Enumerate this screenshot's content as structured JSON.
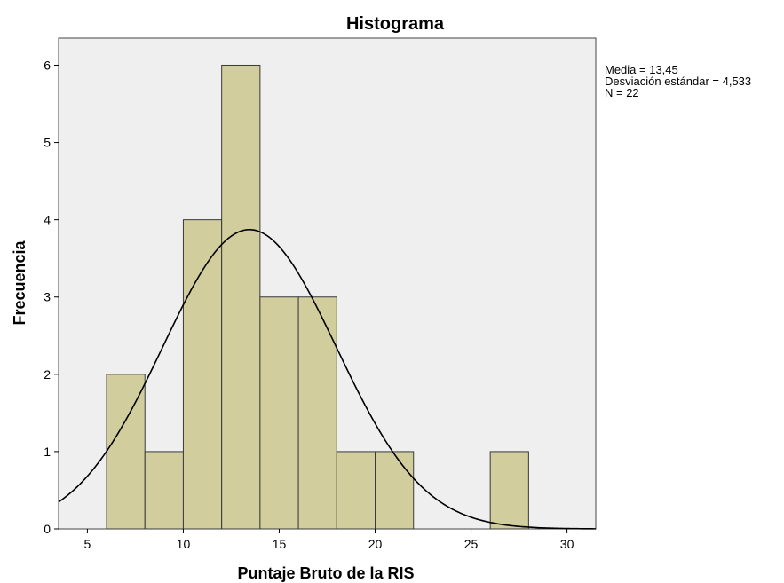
{
  "chart_data": {
    "type": "bar",
    "subtype": "histogram",
    "title": "Histograma",
    "xlabel": "Puntaje Bruto de la RIS",
    "ylabel": "Frecuencia",
    "xlim": [
      3.5,
      31.5
    ],
    "ylim": [
      0,
      6.35
    ],
    "xticks": [
      5,
      10,
      15,
      20,
      25,
      30
    ],
    "yticks": [
      0,
      1,
      2,
      3,
      4,
      5,
      6
    ],
    "bins": [
      {
        "start": 6,
        "end": 8,
        "count": 2
      },
      {
        "start": 8,
        "end": 10,
        "count": 1
      },
      {
        "start": 10,
        "end": 12,
        "count": 4
      },
      {
        "start": 12,
        "end": 14,
        "count": 6
      },
      {
        "start": 14,
        "end": 16,
        "count": 3
      },
      {
        "start": 16,
        "end": 18,
        "count": 3
      },
      {
        "start": 18,
        "end": 20,
        "count": 1
      },
      {
        "start": 20,
        "end": 22,
        "count": 1
      },
      {
        "start": 26,
        "end": 28,
        "count": 1
      }
    ],
    "normal_curve": {
      "mean": 13.45,
      "sd": 4.533,
      "n": 22,
      "bin_width": 2
    },
    "stats": [
      "Media = 13,45",
      "Desviación estándar = 4,533",
      "N = 22"
    ],
    "grid": false,
    "colors": {
      "bar_fill": "#d1cd9c",
      "bar_stroke": "#3a3a3a",
      "plot_bg": "#efefef",
      "curve": "#000000"
    }
  }
}
